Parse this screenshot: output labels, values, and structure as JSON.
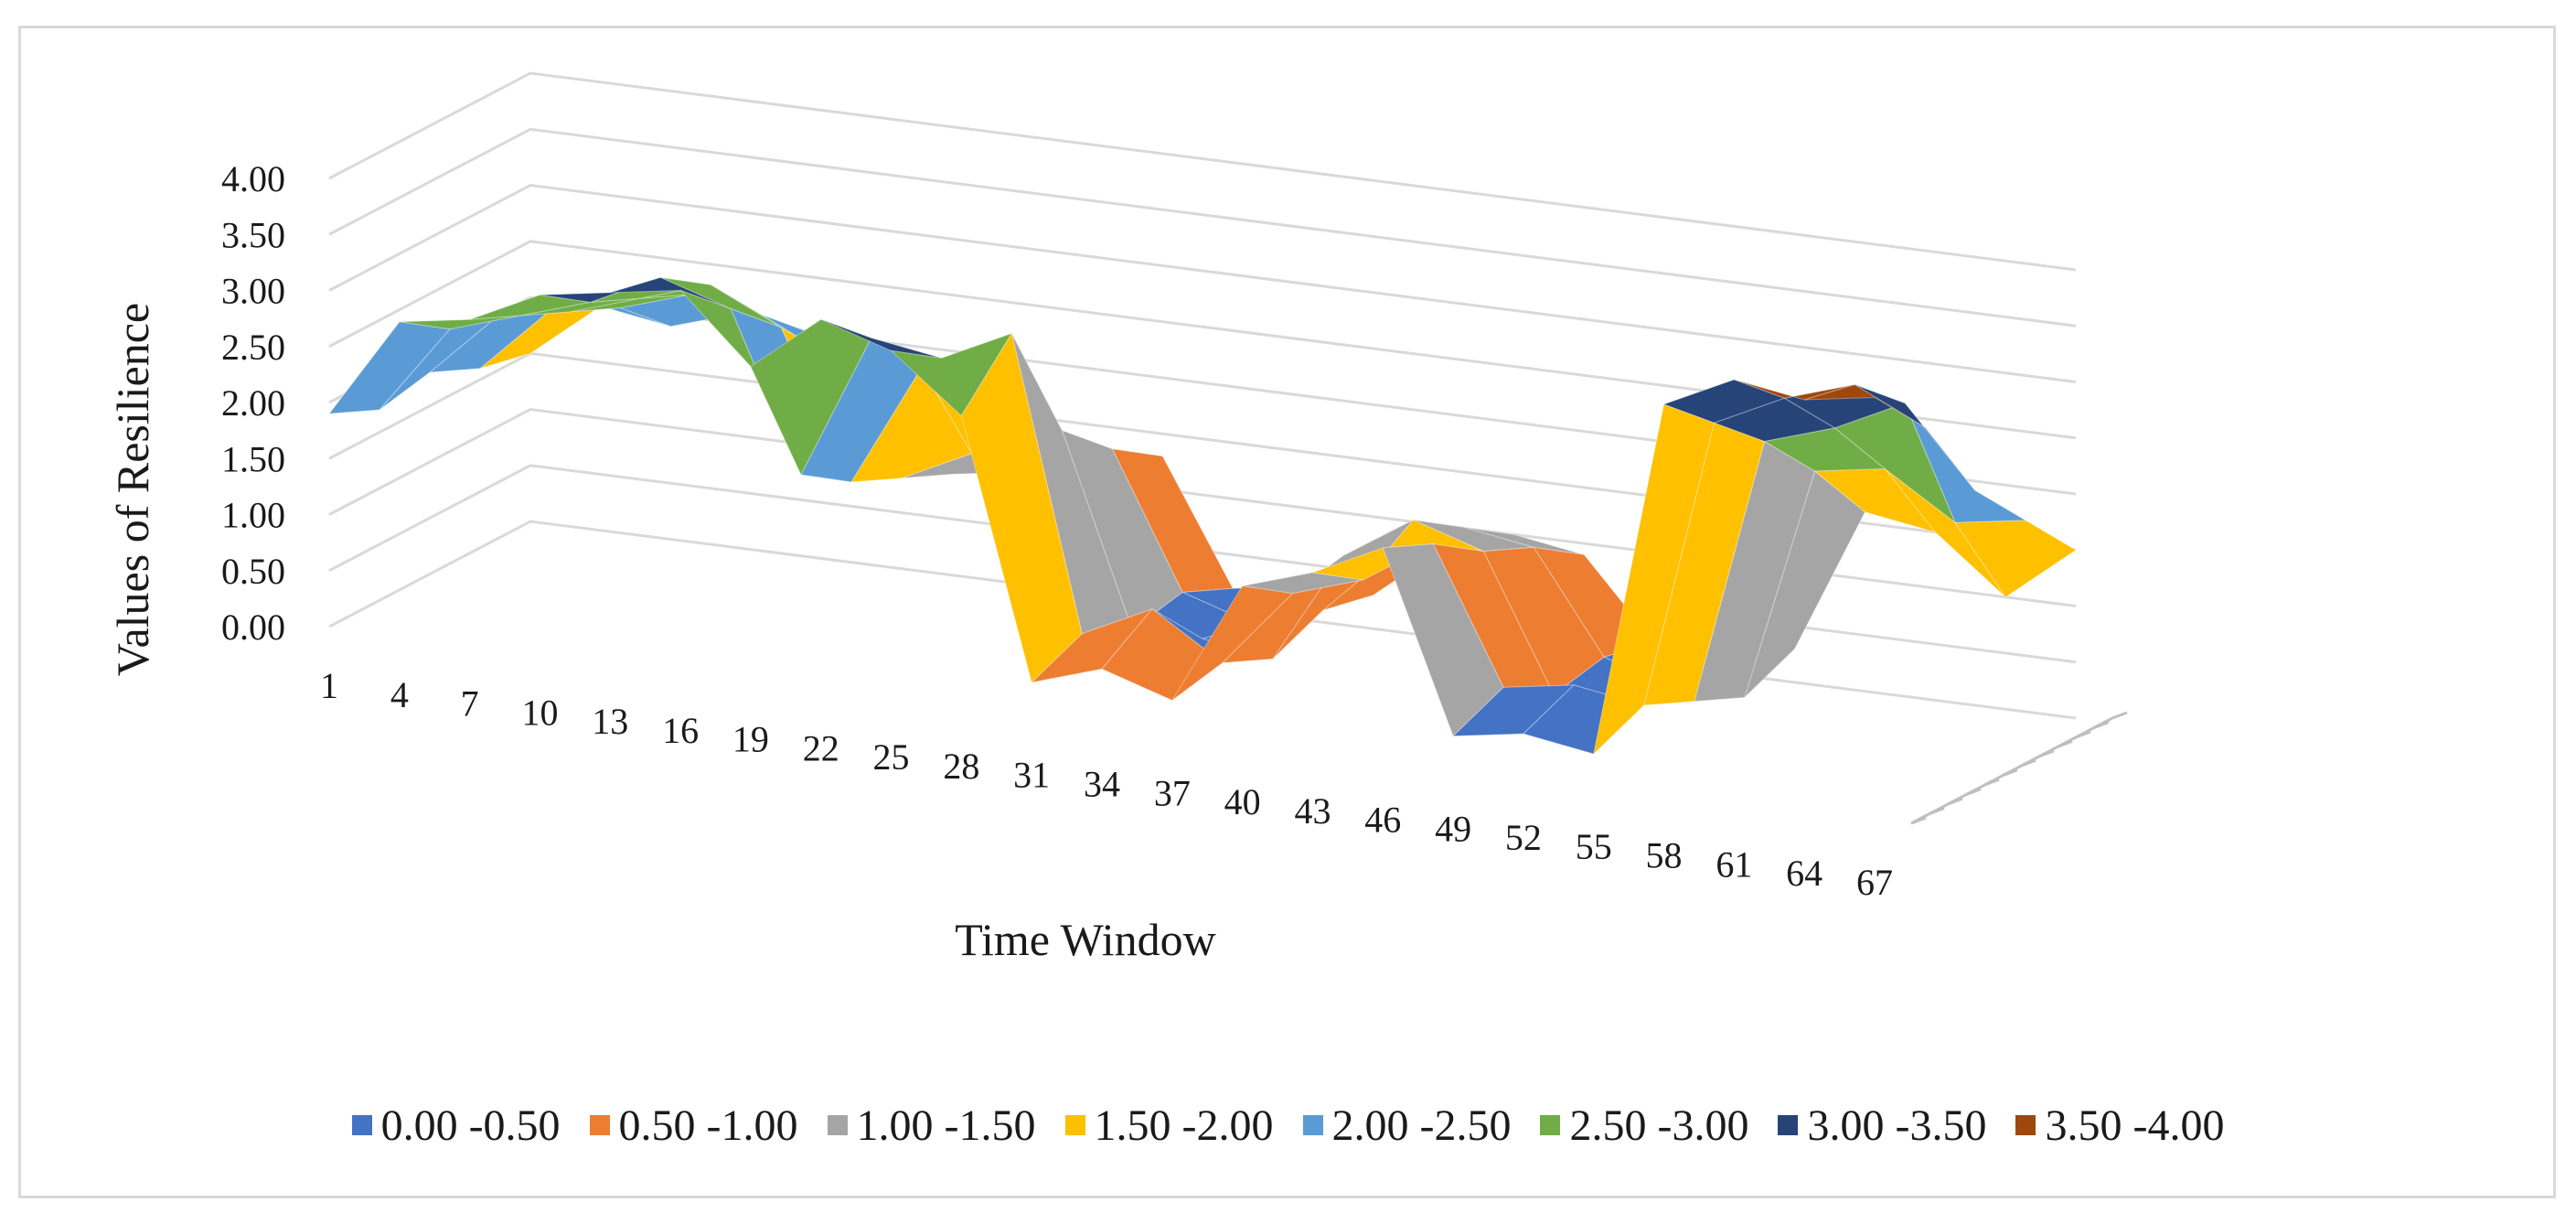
{
  "chart_data": {
    "type": "surface",
    "title": "",
    "xlabel": "Time Window",
    "ylabel": "Values of Resilience",
    "ylim": [
      0,
      4
    ],
    "y_ticks": [
      "0.00",
      "0.50",
      "1.00",
      "1.50",
      "2.00",
      "2.50",
      "3.00",
      "3.50",
      "4.00"
    ],
    "x_ticks": [
      "1",
      "4",
      "7",
      "10",
      "13",
      "16",
      "19",
      "22",
      "25",
      "28",
      "31",
      "34",
      "37",
      "40",
      "43",
      "46",
      "49",
      "52",
      "55",
      "58",
      "61",
      "64",
      "67"
    ],
    "x": [
      1,
      4,
      7,
      10,
      13,
      16,
      19,
      22,
      25,
      28,
      31,
      34,
      37,
      40,
      43,
      46,
      49,
      52,
      55,
      58,
      61,
      64,
      67
    ],
    "series": [
      {
        "values": [
          1.9,
          2.8,
          2.9,
          3.2,
          3.3,
          3.4,
          2.8,
          3.3,
          3.1,
          2.6,
          0.3,
          0.5,
          0.3,
          1.4,
          1.6,
          1.9,
          0.3,
          0.4,
          0.3,
          3.5,
          3.8,
          3.7,
          3.8
        ]
      },
      {
        "values": [
          1.7,
          2.5,
          2.7,
          2.9,
          3.2,
          3.0,
          1.6,
          2.9,
          2.8,
          3.1,
          0.5,
          0.8,
          0.4,
          1.1,
          1.3,
          1.7,
          0.5,
          0.6,
          0.5,
          3.1,
          3.4,
          3.6,
          3.3
        ]
      },
      {
        "values": [
          1.8,
          2.4,
          2.5,
          2.7,
          2.9,
          2.6,
          1.3,
          2.4,
          1.9,
          2.0,
          0.3,
          0.3,
          0.2,
          1.2,
          1.6,
          1.4,
          0.2,
          0.2,
          0.3,
          2.7,
          2.9,
          3.2,
          2.5
        ]
      },
      {
        "values": [
          1.6,
          2.2,
          2.3,
          2.5,
          2.4,
          2.1,
          1.1,
          1.4,
          1.2,
          1.6,
          0.4,
          0.2,
          0.4,
          1.0,
          1.3,
          1.2,
          0.3,
          0.1,
          0.1,
          2.2,
          2.3,
          1.9,
          2.0
        ]
      },
      {
        "values": [
          1.5,
          2.0,
          1.9,
          2.1,
          2.0,
          1.8,
          0.9,
          1.0,
          0.8,
          1.3,
          0.2,
          0.3,
          0.3,
          0.8,
          1.0,
          0.9,
          0.2,
          0.2,
          0.3,
          1.6,
          1.5,
          1.0,
          1.5
        ]
      }
    ],
    "color_bands": [
      {
        "label": "0.00 -0.50",
        "min": 0.0,
        "max": 0.5,
        "color": "#4472c4"
      },
      {
        "label": "0.50 -1.00",
        "min": 0.5,
        "max": 1.0,
        "color": "#ed7d31"
      },
      {
        "label": "1.00 -1.50",
        "min": 1.0,
        "max": 1.5,
        "color": "#a5a5a5"
      },
      {
        "label": "1.50 -2.00",
        "min": 1.5,
        "max": 2.0,
        "color": "#ffc000"
      },
      {
        "label": "2.00 -2.50",
        "min": 2.0,
        "max": 2.5,
        "color": "#5b9bd5"
      },
      {
        "label": "2.50 -3.00",
        "min": 2.5,
        "max": 3.0,
        "color": "#70ad47"
      },
      {
        "label": "3.00 -3.50",
        "min": 3.0,
        "max": 3.5,
        "color": "#264478"
      },
      {
        "label": "3.50 -4.00",
        "min": 3.5,
        "max": 4.0,
        "color": "#9e480e"
      }
    ],
    "legend_position": "bottom",
    "grid": true
  }
}
